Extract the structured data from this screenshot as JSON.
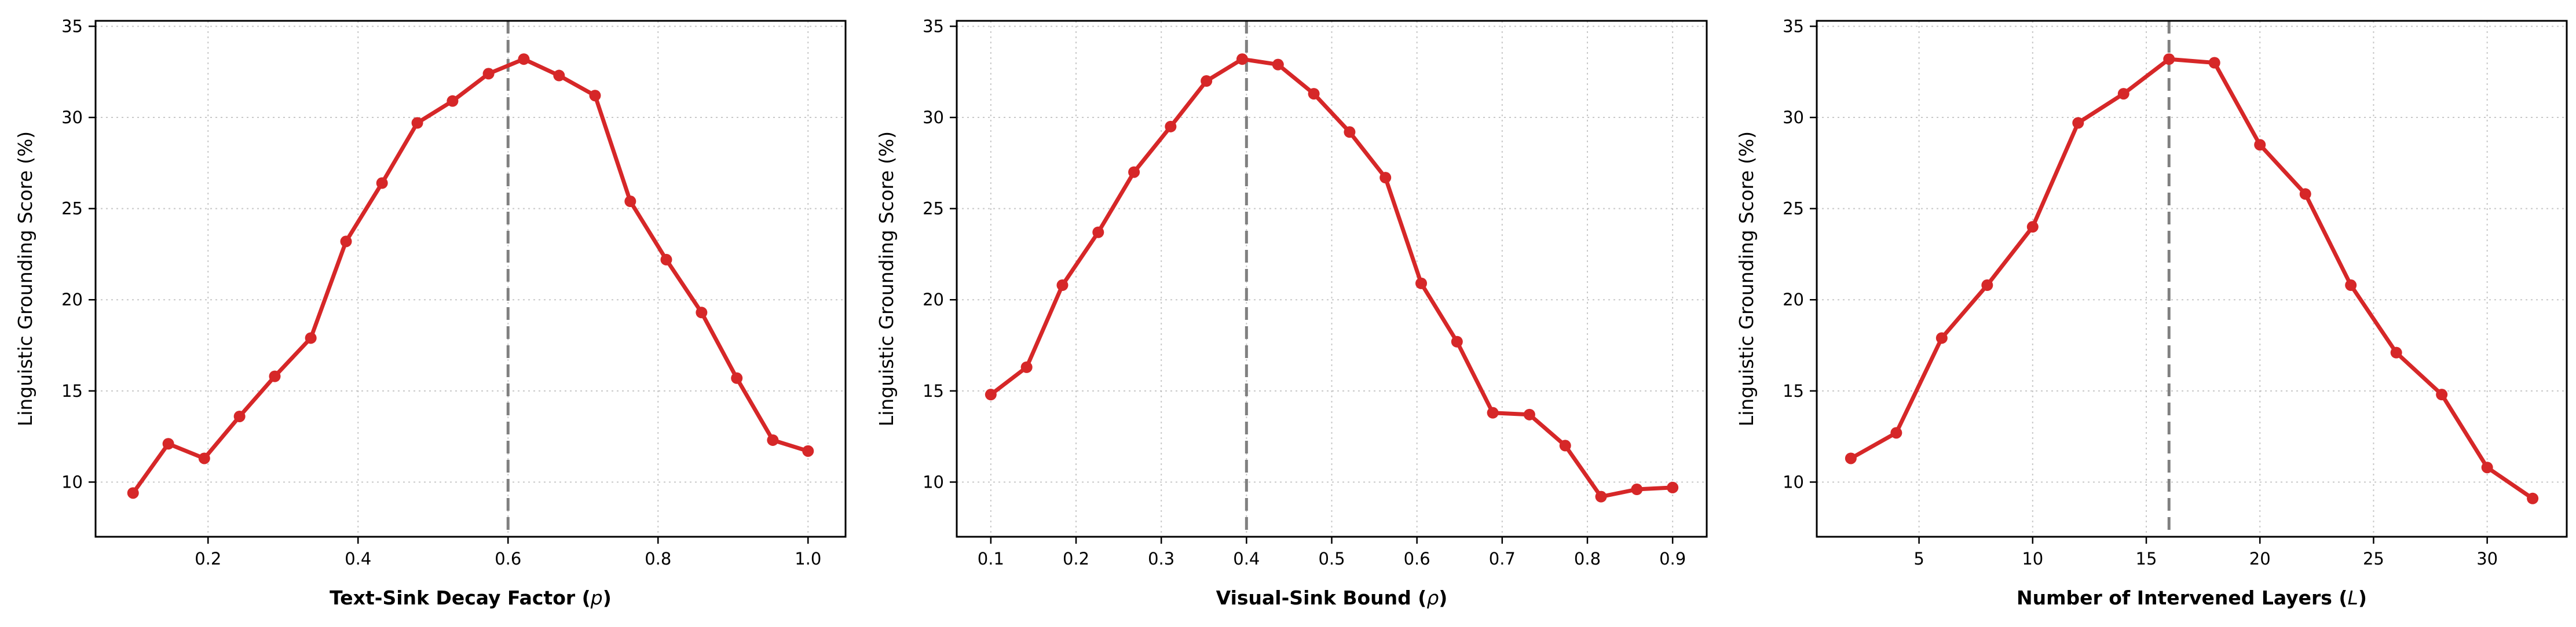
{
  "chart_data": [
    {
      "type": "line",
      "xlabel": "Text-Sink Decay Factor (",
      "xlabel_symbol": "p",
      "xlabel_suffix": ")",
      "ylabel": "Linguistic Grounding Score (%)",
      "xlim": [
        0.05,
        1.05
      ],
      "ylim": [
        7,
        35.3
      ],
      "xticks": [
        0.2,
        0.4,
        0.6,
        0.8,
        1.0
      ],
      "xtick_labels": [
        "0.2",
        "0.4",
        "0.6",
        "0.8",
        "1.0"
      ],
      "yticks": [
        10,
        15,
        20,
        25,
        30,
        35
      ],
      "ytick_labels": [
        "10",
        "15",
        "20",
        "25",
        "30",
        "35"
      ],
      "grid": true,
      "vline_x": 0.6,
      "series": [
        {
          "x": [
            0.1,
            0.147,
            0.195,
            0.242,
            0.289,
            0.337,
            0.384,
            0.432,
            0.479,
            0.526,
            0.574,
            0.621,
            0.668,
            0.716,
            0.763,
            0.811,
            0.858,
            0.905,
            0.953,
            1.0
          ],
          "y": [
            9.4,
            12.1,
            11.3,
            13.6,
            15.8,
            17.9,
            23.2,
            26.4,
            29.7,
            30.9,
            32.4,
            33.2,
            32.3,
            31.2,
            25.4,
            22.2,
            19.3,
            15.7,
            12.3,
            11.7
          ]
        }
      ]
    },
    {
      "type": "line",
      "xlabel": "Visual-Sink Bound (",
      "xlabel_symbol": "ρ",
      "xlabel_suffix": ")",
      "ylabel": "Linguistic Grounding Score (%)",
      "xlim": [
        0.06,
        0.94
      ],
      "ylim": [
        7,
        35.3
      ],
      "xticks": [
        0.1,
        0.2,
        0.3,
        0.4,
        0.5,
        0.6,
        0.7,
        0.8,
        0.9
      ],
      "xtick_labels": [
        "0.1",
        "0.2",
        "0.3",
        "0.4",
        "0.5",
        "0.6",
        "0.7",
        "0.8",
        "0.9"
      ],
      "yticks": [
        10,
        15,
        20,
        25,
        30,
        35
      ],
      "ytick_labels": [
        "10",
        "15",
        "20",
        "25",
        "30",
        "35"
      ],
      "grid": true,
      "vline_x": 0.4,
      "series": [
        {
          "x": [
            0.1,
            0.142,
            0.184,
            0.226,
            0.268,
            0.311,
            0.353,
            0.395,
            0.437,
            0.479,
            0.521,
            0.563,
            0.605,
            0.647,
            0.689,
            0.732,
            0.774,
            0.816,
            0.858,
            0.9
          ],
          "y": [
            14.8,
            16.3,
            20.8,
            23.7,
            27.0,
            29.5,
            32.0,
            33.2,
            32.9,
            31.3,
            29.2,
            26.7,
            20.9,
            17.7,
            13.8,
            13.7,
            12.0,
            9.2,
            9.6,
            9.7
          ]
        }
      ]
    },
    {
      "type": "line",
      "xlabel": "Number of Intervened Layers (",
      "xlabel_symbol": "L",
      "xlabel_suffix": ")",
      "ylabel": "Linguistic Grounding Score (%)",
      "xlim": [
        0.5,
        33.5
      ],
      "ylim": [
        7,
        35.3
      ],
      "xticks": [
        5,
        10,
        15,
        20,
        25,
        30
      ],
      "xtick_labels": [
        "5",
        "10",
        "15",
        "20",
        "25",
        "30"
      ],
      "yticks": [
        10,
        15,
        20,
        25,
        30,
        35
      ],
      "ytick_labels": [
        "10",
        "15",
        "20",
        "25",
        "30",
        "35"
      ],
      "grid": true,
      "vline_x": 16,
      "series": [
        {
          "x": [
            2,
            4,
            6,
            8,
            10,
            12,
            14,
            16,
            18,
            20,
            22,
            24,
            26,
            28,
            30,
            32
          ],
          "y": [
            11.3,
            12.7,
            17.9,
            20.8,
            24.0,
            29.7,
            31.3,
            33.2,
            33.0,
            28.5,
            25.8,
            20.8,
            17.1,
            14.8,
            10.8,
            9.1
          ]
        }
      ]
    }
  ],
  "colors": {
    "line": "#d62728",
    "vline": "#808080",
    "grid": "#b0b0b0",
    "axes": "#000000"
  }
}
